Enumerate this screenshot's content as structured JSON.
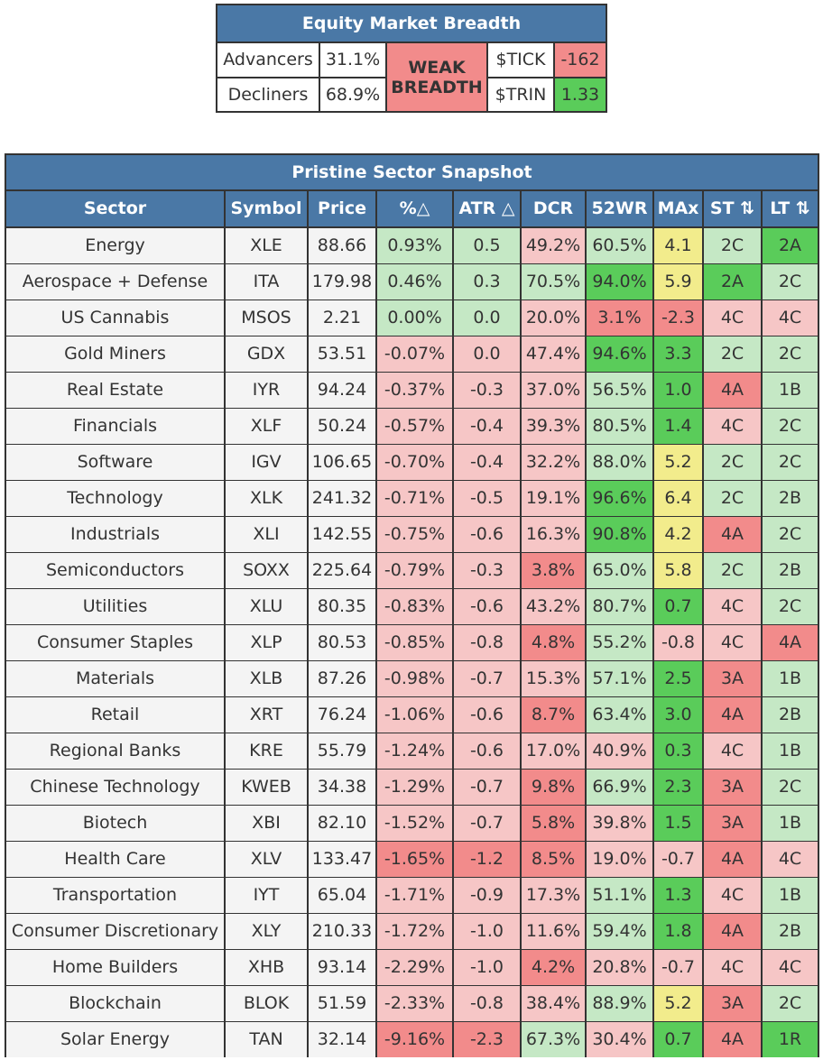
{
  "breadth": {
    "title": "Equity Market Breadth",
    "advancers_label": "Advancers",
    "advancers_value": "31.1%",
    "decliners_label": "Decliners",
    "decliners_value": "68.9%",
    "status_line1": "WEAK",
    "status_line2": "BREADTH",
    "tick_label": "$TICK",
    "tick_value": "-162",
    "trin_label": "$TRIN",
    "trin_value": "1.33"
  },
  "snapshot": {
    "title": "Pristine Sector Snapshot",
    "columns": [
      "Sector",
      "Symbol",
      "Price",
      "%△",
      "ATR △",
      "DCR",
      "52WR",
      "MAx",
      "ST ⇅",
      "LT ⇅"
    ],
    "rows": [
      {
        "sector": "Energy",
        "symbol": "XLE",
        "price": "88.66",
        "pct": "0.93%",
        "atr": "0.5",
        "dcr": "49.2%",
        "wr": "60.5%",
        "max": "4.1",
        "st": "2C",
        "lt": "2A",
        "colors": [
          "w",
          "w",
          "w",
          "lg",
          "lg",
          "lr",
          "lg",
          "y",
          "lg",
          "g"
        ]
      },
      {
        "sector": "Aerospace + Defense",
        "symbol": "ITA",
        "price": "179.98",
        "pct": "0.46%",
        "atr": "0.3",
        "dcr": "70.5%",
        "wr": "94.0%",
        "max": "5.9",
        "st": "2A",
        "lt": "2C",
        "colors": [
          "w",
          "w",
          "w",
          "lg",
          "lg",
          "lg",
          "g",
          "y",
          "g",
          "lg"
        ]
      },
      {
        "sector": "US Cannabis",
        "symbol": "MSOS",
        "price": "2.21",
        "pct": "0.00%",
        "atr": "0.0",
        "dcr": "20.0%",
        "wr": "3.1%",
        "max": "-2.3",
        "st": "4C",
        "lt": "4C",
        "colors": [
          "w",
          "w",
          "w",
          "lg",
          "lg",
          "lr",
          "r",
          "r",
          "lr",
          "lr"
        ]
      },
      {
        "sector": "Gold Miners",
        "symbol": "GDX",
        "price": "53.51",
        "pct": "-0.07%",
        "atr": "0.0",
        "dcr": "47.4%",
        "wr": "94.6%",
        "max": "3.3",
        "st": "2C",
        "lt": "2C",
        "colors": [
          "w",
          "w",
          "w",
          "lr",
          "lr",
          "lr",
          "g",
          "g",
          "lg",
          "lg"
        ]
      },
      {
        "sector": "Real Estate",
        "symbol": "IYR",
        "price": "94.24",
        "pct": "-0.37%",
        "atr": "-0.3",
        "dcr": "37.0%",
        "wr": "56.5%",
        "max": "1.0",
        "st": "4A",
        "lt": "1B",
        "colors": [
          "w",
          "w",
          "w",
          "lr",
          "lr",
          "lr",
          "lg",
          "g",
          "r",
          "lg"
        ]
      },
      {
        "sector": "Financials",
        "symbol": "XLF",
        "price": "50.24",
        "pct": "-0.57%",
        "atr": "-0.4",
        "dcr": "39.3%",
        "wr": "80.5%",
        "max": "1.4",
        "st": "4C",
        "lt": "2C",
        "colors": [
          "w",
          "w",
          "w",
          "lr",
          "lr",
          "lr",
          "lg",
          "g",
          "lr",
          "lg"
        ]
      },
      {
        "sector": "Software",
        "symbol": "IGV",
        "price": "106.65",
        "pct": "-0.70%",
        "atr": "-0.4",
        "dcr": "32.2%",
        "wr": "88.0%",
        "max": "5.2",
        "st": "2C",
        "lt": "2C",
        "colors": [
          "w",
          "w",
          "w",
          "lr",
          "lr",
          "lr",
          "lg",
          "y",
          "lg",
          "lg"
        ]
      },
      {
        "sector": "Technology",
        "symbol": "XLK",
        "price": "241.32",
        "pct": "-0.71%",
        "atr": "-0.5",
        "dcr": "19.1%",
        "wr": "96.6%",
        "max": "6.4",
        "st": "2C",
        "lt": "2B",
        "colors": [
          "w",
          "w",
          "w",
          "lr",
          "lr",
          "lr",
          "g",
          "y",
          "lg",
          "lg"
        ]
      },
      {
        "sector": "Industrials",
        "symbol": "XLI",
        "price": "142.55",
        "pct": "-0.75%",
        "atr": "-0.6",
        "dcr": "16.3%",
        "wr": "90.8%",
        "max": "4.2",
        "st": "4A",
        "lt": "2C",
        "colors": [
          "w",
          "w",
          "w",
          "lr",
          "lr",
          "lr",
          "g",
          "y",
          "r",
          "lg"
        ]
      },
      {
        "sector": "Semiconductors",
        "symbol": "SOXX",
        "price": "225.64",
        "pct": "-0.79%",
        "atr": "-0.3",
        "dcr": "3.8%",
        "wr": "65.0%",
        "max": "5.8",
        "st": "2C",
        "lt": "2B",
        "colors": [
          "w",
          "w",
          "w",
          "lr",
          "lr",
          "r",
          "lg",
          "y",
          "lg",
          "lg"
        ]
      },
      {
        "sector": "Utilities",
        "symbol": "XLU",
        "price": "80.35",
        "pct": "-0.83%",
        "atr": "-0.6",
        "dcr": "43.2%",
        "wr": "80.7%",
        "max": "0.7",
        "st": "4C",
        "lt": "2C",
        "colors": [
          "w",
          "w",
          "w",
          "lr",
          "lr",
          "lr",
          "lg",
          "g",
          "lr",
          "lg"
        ]
      },
      {
        "sector": "Consumer Staples",
        "symbol": "XLP",
        "price": "80.53",
        "pct": "-0.85%",
        "atr": "-0.8",
        "dcr": "4.8%",
        "wr": "55.2%",
        "max": "-0.8",
        "st": "4C",
        "lt": "4A",
        "colors": [
          "w",
          "w",
          "w",
          "lr",
          "lr",
          "r",
          "lg",
          "lr",
          "lr",
          "r"
        ]
      },
      {
        "sector": "Materials",
        "symbol": "XLB",
        "price": "87.26",
        "pct": "-0.98%",
        "atr": "-0.7",
        "dcr": "15.3%",
        "wr": "57.1%",
        "max": "2.5",
        "st": "3A",
        "lt": "1B",
        "colors": [
          "w",
          "w",
          "w",
          "lr",
          "lr",
          "lr",
          "lg",
          "g",
          "r",
          "lg"
        ]
      },
      {
        "sector": "Retail",
        "symbol": "XRT",
        "price": "76.24",
        "pct": "-1.06%",
        "atr": "-0.6",
        "dcr": "8.7%",
        "wr": "63.4%",
        "max": "3.0",
        "st": "4A",
        "lt": "2B",
        "colors": [
          "w",
          "w",
          "w",
          "lr",
          "lr",
          "r",
          "lg",
          "g",
          "r",
          "lg"
        ]
      },
      {
        "sector": "Regional Banks",
        "symbol": "KRE",
        "price": "55.79",
        "pct": "-1.24%",
        "atr": "-0.6",
        "dcr": "17.0%",
        "wr": "40.9%",
        "max": "0.3",
        "st": "4C",
        "lt": "1B",
        "colors": [
          "w",
          "w",
          "w",
          "lr",
          "lr",
          "lr",
          "lr",
          "g",
          "lr",
          "lg"
        ]
      },
      {
        "sector": "Chinese Technology",
        "symbol": "KWEB",
        "price": "34.38",
        "pct": "-1.29%",
        "atr": "-0.7",
        "dcr": "9.8%",
        "wr": "66.9%",
        "max": "2.3",
        "st": "3A",
        "lt": "2C",
        "colors": [
          "w",
          "w",
          "w",
          "lr",
          "lr",
          "r",
          "lg",
          "g",
          "r",
          "lg"
        ]
      },
      {
        "sector": "Biotech",
        "symbol": "XBI",
        "price": "82.10",
        "pct": "-1.52%",
        "atr": "-0.7",
        "dcr": "5.8%",
        "wr": "39.8%",
        "max": "1.5",
        "st": "3A",
        "lt": "1B",
        "colors": [
          "w",
          "w",
          "w",
          "lr",
          "lr",
          "r",
          "lr",
          "g",
          "r",
          "lg"
        ]
      },
      {
        "sector": "Health Care",
        "symbol": "XLV",
        "price": "133.47",
        "pct": "-1.65%",
        "atr": "-1.2",
        "dcr": "8.5%",
        "wr": "19.0%",
        "max": "-0.7",
        "st": "4A",
        "lt": "4C",
        "colors": [
          "w",
          "w",
          "w",
          "r",
          "r",
          "r",
          "lr",
          "lr",
          "r",
          "lr"
        ]
      },
      {
        "sector": "Transportation",
        "symbol": "IYT",
        "price": "65.04",
        "pct": "-1.71%",
        "atr": "-0.9",
        "dcr": "17.3%",
        "wr": "51.1%",
        "max": "1.3",
        "st": "4C",
        "lt": "1B",
        "colors": [
          "w",
          "w",
          "w",
          "lr",
          "lr",
          "lr",
          "lg",
          "g",
          "lr",
          "lg"
        ]
      },
      {
        "sector": "Consumer Discretionary",
        "symbol": "XLY",
        "price": "210.33",
        "pct": "-1.72%",
        "atr": "-1.0",
        "dcr": "11.6%",
        "wr": "59.4%",
        "max": "1.8",
        "st": "4A",
        "lt": "2B",
        "colors": [
          "w",
          "w",
          "w",
          "lr",
          "lr",
          "lr",
          "lg",
          "g",
          "r",
          "lg"
        ]
      },
      {
        "sector": "Home Builders",
        "symbol": "XHB",
        "price": "93.14",
        "pct": "-2.29%",
        "atr": "-1.0",
        "dcr": "4.2%",
        "wr": "20.8%",
        "max": "-0.7",
        "st": "4C",
        "lt": "4C",
        "colors": [
          "w",
          "w",
          "w",
          "lr",
          "lr",
          "r",
          "lr",
          "lr",
          "lr",
          "lr"
        ]
      },
      {
        "sector": "Blockchain",
        "symbol": "BLOK",
        "price": "51.59",
        "pct": "-2.33%",
        "atr": "-0.8",
        "dcr": "38.4%",
        "wr": "88.9%",
        "max": "5.2",
        "st": "3A",
        "lt": "2C",
        "colors": [
          "w",
          "w",
          "w",
          "lr",
          "lr",
          "lr",
          "lg",
          "y",
          "r",
          "lg"
        ]
      },
      {
        "sector": "Solar Energy",
        "symbol": "TAN",
        "price": "32.14",
        "pct": "-9.16%",
        "atr": "-2.3",
        "dcr": "67.3%",
        "wr": "30.4%",
        "max": "0.7",
        "st": "4A",
        "lt": "1R",
        "colors": [
          "w",
          "w",
          "w",
          "r",
          "r",
          "lg",
          "lr",
          "g",
          "r",
          "g"
        ]
      }
    ]
  }
}
